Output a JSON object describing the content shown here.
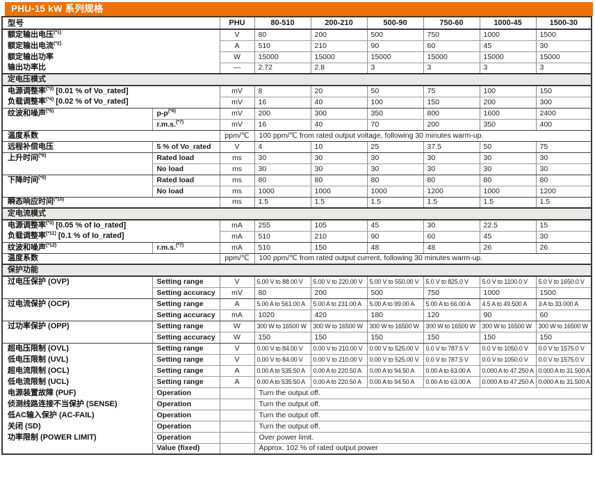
{
  "title": "PHU-15 kW 系列规格",
  "colors": {
    "accent_orange": "#ee7203",
    "border_dark": "#383838",
    "border_light": "#9b9b9b",
    "section_row_bg": "#e9e9e7"
  },
  "header": {
    "model_label": "型号",
    "unit_label": "PHU",
    "models": [
      "80-510",
      "200-210",
      "500-90",
      "750-60",
      "1000-45",
      "1500-30"
    ]
  },
  "rows": [
    {
      "t": "spec",
      "l": "额定输出电压",
      "s": "*1",
      "u": "V",
      "v": [
        "80",
        "200",
        "500",
        "750",
        "1000",
        "1500"
      ],
      "b": "light"
    },
    {
      "t": "spec",
      "l": "额定输出电流",
      "s": "*2",
      "u": "A",
      "v": [
        "510",
        "210",
        "90",
        "60",
        "45",
        "30"
      ],
      "b": "light"
    },
    {
      "t": "spec",
      "l": "额定输出功率",
      "u": "W",
      "v": [
        "15000",
        "15000",
        "15000",
        "15000",
        "15000",
        "15000"
      ],
      "b": "light"
    },
    {
      "t": "spec",
      "l": "输出功率比",
      "u": "—",
      "v": [
        "2.72",
        "2.8",
        "3",
        "3",
        "3",
        "3"
      ],
      "b": "dark"
    },
    {
      "t": "sec",
      "l": "定电压模式"
    },
    {
      "t": "spec",
      "l": "电源调整率",
      "s": "*3",
      "n": "[0.01 % of Vo_rated]",
      "u": "mV",
      "v": [
        "8",
        "20",
        "50",
        "75",
        "100",
        "150"
      ],
      "b": "light"
    },
    {
      "t": "spec",
      "l": "负载调整率",
      "s": "*4",
      "n": "[0.02 % of Vo_rated]",
      "u": "mV",
      "v": [
        "16",
        "40",
        "100",
        "150",
        "200",
        "300"
      ],
      "b": "dark"
    },
    {
      "t": "spec",
      "l": "纹波和噪声",
      "s": "*5",
      "sl": "p-p",
      "ss": "*6",
      "u": "mV",
      "v": [
        "200",
        "300",
        "350",
        "800",
        "1600",
        "2400"
      ],
      "b": "light"
    },
    {
      "t": "spec",
      "l": "",
      "sl": "r.m.s.",
      "ss": "*7",
      "u": "mV",
      "v": [
        "16",
        "40",
        "70",
        "200",
        "350",
        "400"
      ],
      "b": "dark"
    },
    {
      "t": "spec",
      "l": "温度系数",
      "u": "ppm/℃",
      "v": "100 ppm/℃ from rated output voltage, following 30 minutes warm-up.",
      "b": "dark"
    },
    {
      "t": "spec",
      "l": "远程补偿电压",
      "sl": "5 % of Vo_rated",
      "u": "V",
      "v": [
        "4",
        "10",
        "25",
        "37.5",
        "50",
        "75"
      ],
      "b": "dark"
    },
    {
      "t": "spec",
      "l": "上升时间",
      "s": "*8",
      "sl": "Rated load",
      "u": "ms",
      "v": [
        "30",
        "30",
        "30",
        "30",
        "30",
        "30"
      ],
      "b": "light"
    },
    {
      "t": "spec",
      "l": "",
      "sl": "No load",
      "u": "ms",
      "v": [
        "30",
        "30",
        "30",
        "30",
        "30",
        "30"
      ],
      "b": "dark"
    },
    {
      "t": "spec",
      "l": "下降时间",
      "s": "*9",
      "sl": "Rated load",
      "u": "ms",
      "v": [
        "80",
        "80",
        "80",
        "80",
        "80",
        "80"
      ],
      "b": "light"
    },
    {
      "t": "spec",
      "l": "",
      "sl": "No load",
      "u": "ms",
      "v": [
        "1000",
        "1000",
        "1000",
        "1200",
        "1000",
        "1200"
      ],
      "b": "dark"
    },
    {
      "t": "spec",
      "l": "瞬态响应时间",
      "s": "*10",
      "u": "ms",
      "v": [
        "1.5",
        "1.5",
        "1.5",
        "1.5",
        "1.5",
        "1.5"
      ],
      "b": "dark"
    },
    {
      "t": "sec",
      "l": "定电流模式"
    },
    {
      "t": "spec",
      "l": "电源调整率",
      "s": "*3",
      "n": "[0.05 % of Io_rated]",
      "u": "mA",
      "v": [
        "255",
        "105",
        "45",
        "30",
        "22.5",
        "15"
      ],
      "b": "light"
    },
    {
      "t": "spec",
      "l": "负载调整率",
      "s": "*11",
      "n": "[0.1 % of Io_rated]",
      "u": "mA",
      "v": [
        "510",
        "210",
        "90",
        "60",
        "45",
        "30"
      ],
      "b": "dark"
    },
    {
      "t": "spec",
      "l": "纹波和噪声",
      "s": "*12",
      "sl": "r.m.s.",
      "ss": "*7",
      "u": "mA",
      "v": [
        "510",
        "150",
        "48",
        "48",
        "26",
        "26"
      ],
      "b": "dark"
    },
    {
      "t": "spec",
      "l": "温度系数",
      "u": "ppm/℃",
      "v": "100 ppm/℃ from rated output current, following 30 minutes warm-up.",
      "b": "dark"
    },
    {
      "t": "sec",
      "l": "保护功能"
    },
    {
      "t": "spec",
      "l": "过电压保护 (OVP)",
      "sl": "Setting range",
      "u": "V",
      "v": [
        "5.00 V to 88.00 V",
        "5.00 V to 220.00 V",
        "5.00 V to 550.00 V",
        "5.0 V to 825.0 V",
        "5.0 V to 1100.0 V",
        "5.0 V to 1650.0 V"
      ],
      "b": "light"
    },
    {
      "t": "spec",
      "l": "",
      "sl": "Setting accuracy",
      "u": "mV",
      "v": [
        "80",
        "200",
        "500",
        "750",
        "1000",
        "1500"
      ],
      "b": "dark"
    },
    {
      "t": "spec",
      "l": "过电流保护 (OCP)",
      "sl": "Setting range",
      "u": "A",
      "v": [
        "5.00 A to 561.00 A",
        "5.00 A to 231.00 A",
        "5.00 A to 99.00 A",
        "5.00 A to 66.00 A",
        "4.5 A to 49.500 A",
        "3 A to 33.000 A"
      ],
      "b": "light"
    },
    {
      "t": "spec",
      "l": "",
      "sl": "Setting accuracy",
      "u": "mA",
      "v": [
        "1020",
        "420",
        "180",
        "120",
        "90",
        "60"
      ],
      "b": "dark"
    },
    {
      "t": "spec",
      "l": "过功率保护 (OPP)",
      "sl": "Setting range",
      "u": "W",
      "v": [
        "300 W to 16500 W",
        "300 W to 16500 W",
        "300 W to 16500 W",
        "300 W to 16500 W",
        "300 W to 16500 W",
        "300 W to 16500 W"
      ],
      "b": "light"
    },
    {
      "t": "spec",
      "l": "",
      "sl": "Setting accuracy",
      "u": "W",
      "v": [
        "150",
        "150",
        "150",
        "150",
        "150",
        "150"
      ],
      "b": "dark"
    },
    {
      "t": "spec",
      "l": "超电压限制 (OVL)",
      "sl": "Setting range",
      "u": "V",
      "v": [
        "0.00 V to 84.00 V",
        "0.00 V to 210.00 V",
        "0.00 V to 525.00 V",
        "0.0 V to 787.5 V",
        "0.0 V to 1050.0 V",
        "0.0 V to 1575.0 V"
      ],
      "b": "light"
    },
    {
      "t": "spec",
      "l": "低电压限制 (UVL)",
      "sl": "Setting range",
      "u": "V",
      "v": [
        "0.00 V to 84.00 V",
        "0.00 V to 210.00 V",
        "0.00 V to 525.00 V",
        "0.0 V to 787.5 V",
        "0.0 V to 1050.0 V",
        "0.0 V to 1575.0 V"
      ],
      "b": "light"
    },
    {
      "t": "spec",
      "l": "超电流限制 (OCL)",
      "sl": "Setting range",
      "u": "A",
      "v": [
        "0.00 A to 535.50 A",
        "0.00 A to 220.50 A",
        "0.00 A to 94.50 A",
        "0.00 A to 63.00 A",
        "0.000 A to 47.250 A",
        "0.000 A to 31.500 A"
      ],
      "b": "light"
    },
    {
      "t": "spec",
      "l": "低电流限制 (UCL)",
      "sl": "Setting range",
      "u": "A",
      "v": [
        "0.00 A to 535.50 A",
        "0.00 A to 220.50 A",
        "0.00 A to 94.50 A",
        "0.00 A to 63.00 A",
        "0.000 A to 47.250 A",
        "0.000 A to 31.500 A"
      ],
      "b": "light"
    },
    {
      "t": "spec",
      "l": "电源装置故障 (PUF)",
      "sl": "Operation",
      "u": "",
      "v": "Turn the output off.",
      "b": "light"
    },
    {
      "t": "spec",
      "l": "侦测线路连接不当保护 (SENSE)",
      "sl": "Operation",
      "u": "",
      "v": "Turn the output off.",
      "b": "light"
    },
    {
      "t": "spec",
      "l": "低AC输入保护 (AC-FAIL)",
      "sl": "Operation",
      "u": "",
      "v": "Turn the output off.",
      "b": "light"
    },
    {
      "t": "spec",
      "l": "关闭 (SD)",
      "sl": "Operation",
      "u": "",
      "v": "Turn the output off.",
      "b": "light"
    },
    {
      "t": "spec",
      "l": "功率限制 (POWER LIMIT)",
      "sl": "Operation",
      "u": "",
      "v": "Over power limit.",
      "b": "light"
    },
    {
      "t": "spec",
      "l": "",
      "sl": "Value (fixed)",
      "u": "",
      "v": "Approx. 102 % of rated output power",
      "b": "none"
    }
  ]
}
